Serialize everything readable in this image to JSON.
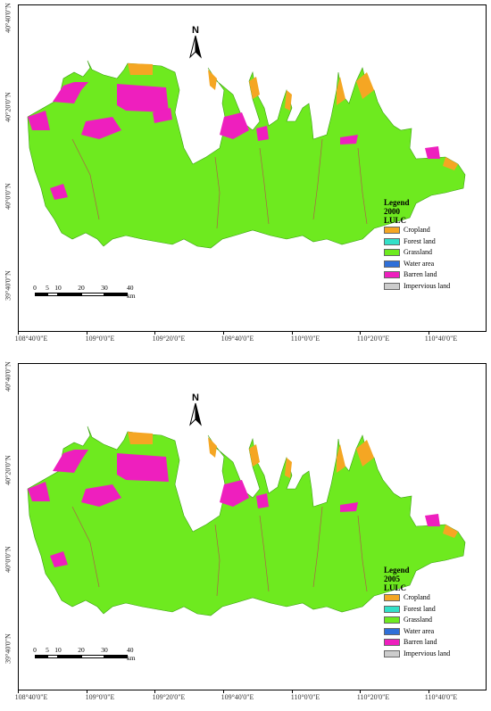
{
  "panels": [
    {
      "id": "top",
      "legend": {
        "title": "Legend",
        "year": "2000",
        "subtitle": "LULC",
        "items": [
          {
            "label": "Cropland",
            "color": "#f5a623"
          },
          {
            "label": "Forest land",
            "color": "#33e0c8"
          },
          {
            "label": "Grassland",
            "color": "#6eea1f"
          },
          {
            "label": "Water area",
            "color": "#2f6fd8"
          },
          {
            "label": "Barren land",
            "color": "#ee1fbe"
          },
          {
            "label": "Impervious land",
            "color": "#cccccc"
          }
        ]
      },
      "north_label": "N",
      "scale_labels": [
        "0",
        "5",
        "10",
        "20",
        "30",
        "40 km"
      ],
      "lat_labels": [
        "40°40'0\"N",
        "40°20'0\"N",
        "40°0'0\"N",
        "39°40'0\"N"
      ],
      "lon_labels": [
        "108°40'0\"E",
        "109°0'0\"E",
        "109°20'0\"E",
        "109°40'0\"E",
        "110°0'0\"E",
        "110°20'0\"E",
        "110°40'0\"E"
      ]
    },
    {
      "id": "bottom",
      "legend": {
        "title": "Legend",
        "year": "2005",
        "subtitle": "LULC",
        "items": [
          {
            "label": "Cropland",
            "color": "#f5a623"
          },
          {
            "label": "Forest land",
            "color": "#33e0c8"
          },
          {
            "label": "Grassland",
            "color": "#6eea1f"
          },
          {
            "label": "Water area",
            "color": "#2f6fd8"
          },
          {
            "label": "Barren land",
            "color": "#ee1fbe"
          },
          {
            "label": "Impervious land",
            "color": "#cccccc"
          }
        ]
      },
      "north_label": "N",
      "scale_labels": [
        "0",
        "5",
        "10",
        "20",
        "30",
        "40 km"
      ],
      "lat_labels": [
        "40°40'0\"N",
        "40°20'0\"N",
        "40°0'0\"N",
        "39°40'0\"N"
      ],
      "lon_labels": [
        "108°40'0\"E",
        "109°0'0\"E",
        "109°20'0\"E",
        "109°40'0\"E",
        "110°0'0\"E",
        "110°20'0\"E",
        "110°40'0\"E"
      ]
    }
  ]
}
